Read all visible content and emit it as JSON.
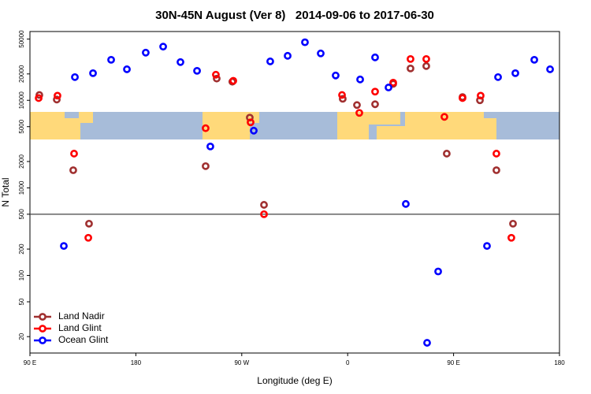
{
  "chart_data": {
    "type": "scatter",
    "title": "30N-45N August (Ver 8)   2014-09-06 to 2017-06-30",
    "x_label": "Longitude (deg E)",
    "y_label": "N Total",
    "y_scale": "log",
    "legend": "bottom-left",
    "xlim": [
      90,
      540
    ],
    "xticks": [
      {
        "value": 90,
        "label": "90 E"
      },
      180,
      {
        "value": 270,
        "label": "90 W"
      },
      {
        "value": 360,
        "label": "0"
      },
      {
        "value": 450,
        "label": "90 E"
      },
      {
        "value": 540,
        "label": "180"
      }
    ],
    "ylim": [
      13,
      61000
    ],
    "yticks": [
      20,
      50,
      100,
      200,
      500,
      1000,
      2000,
      5000,
      10000,
      20000,
      50000
    ],
    "reference_line": 500,
    "series": [
      {
        "name": "Land Nadir",
        "color": "#a03030",
        "x": [
          98,
          112.8,
          126.8,
          140.2,
          239.3,
          248.7,
          262,
          276.8,
          288.9,
          355.8,
          367.9,
          383.3,
          398.7,
          413.4,
          426.8,
          444.2,
          457.6,
          472.4,
          486.4,
          500.5
        ],
        "values": [
          11500,
          10200,
          1590,
          390,
          1770,
          17700,
          16300,
          6340,
          640,
          10400,
          8830,
          9010,
          15400,
          23100,
          24600,
          2460,
          10900,
          10000,
          1590,
          390
        ]
      },
      {
        "name": "Land Glint",
        "color": "#ff0000",
        "x": [
          97.4,
          113.4,
          127.5,
          139.6,
          239.3,
          248,
          262.8,
          277.5,
          288.9,
          355.2,
          369.9,
          383.3,
          398.7,
          413.4,
          426.8,
          442.2,
          457.6,
          473,
          486.4,
          499.1
        ],
        "values": [
          10600,
          11300,
          2460,
          269,
          4800,
          19600,
          16700,
          5600,
          500,
          11500,
          7180,
          12560,
          15900,
          29600,
          29600,
          6470,
          10600,
          11300,
          2460,
          269
        ]
      },
      {
        "name": "Ocean Glint",
        "color": "#0000ff",
        "x": [
          118.8,
          128.2,
          143.6,
          159,
          172.4,
          188.4,
          203.2,
          217.9,
          232,
          243.3,
          280.2,
          294.2,
          309,
          323.7,
          337.1,
          349.8,
          370.6,
          383.3,
          394.7,
          409.4,
          427.5,
          436.9,
          478.4,
          487.8,
          502.5,
          518.6,
          532
        ],
        "values": [
          217,
          18400,
          20400,
          29000,
          22600,
          35000,
          41000,
          27300,
          21700,
          2970,
          4500,
          27800,
          32200,
          46000,
          34300,
          19200,
          17300,
          30900,
          14000,
          655,
          17,
          111,
          217,
          18400,
          20400,
          29000,
          22600
        ]
      }
    ]
  }
}
